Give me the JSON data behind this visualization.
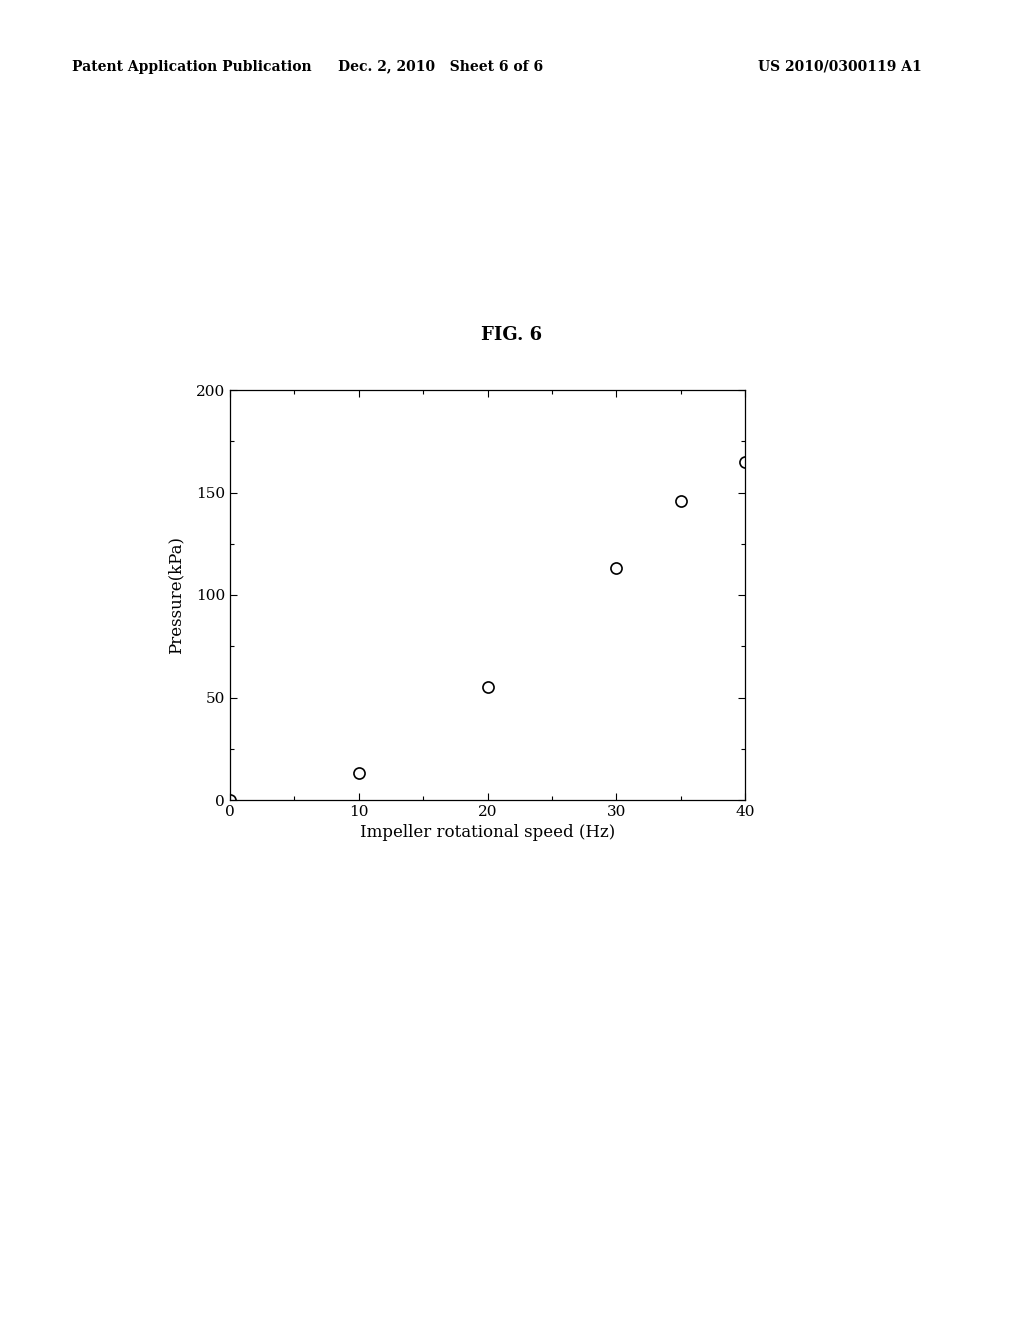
{
  "title": "FIG. 6",
  "xlabel": "Impeller rotational speed (Hz)",
  "ylabel": "Pressure(kPa)",
  "x_data": [
    0,
    10,
    20,
    30,
    35,
    40
  ],
  "y_data": [
    0,
    13,
    55,
    113,
    146,
    165
  ],
  "xlim": [
    0,
    40
  ],
  "ylim": [
    0,
    200
  ],
  "xticks": [
    0,
    10,
    20,
    30,
    40
  ],
  "yticks": [
    0,
    50,
    100,
    150,
    200
  ],
  "marker_size": 8,
  "marker_color": "black",
  "background_color": "#ffffff",
  "header_left": "Patent Application Publication",
  "header_center": "Dec. 2, 2010   Sheet 6 of 6",
  "header_right": "US 2010/0300119 A1",
  "title_fontsize": 13,
  "axis_label_fontsize": 12,
  "tick_fontsize": 11,
  "header_fontsize": 10
}
